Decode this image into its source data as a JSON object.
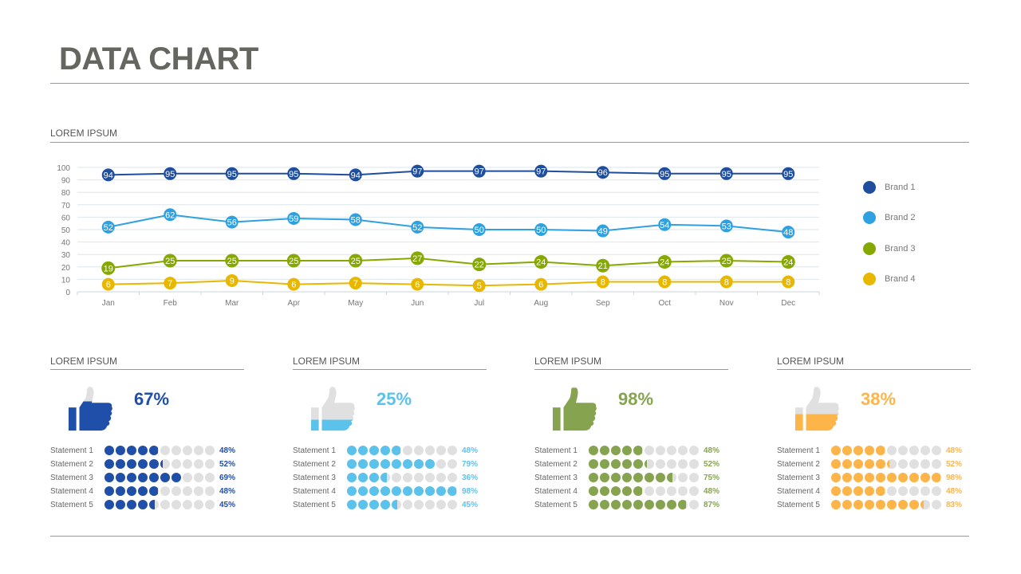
{
  "title": "DATA CHART",
  "chart_section_title": "LOREM IPSUM",
  "chart_data": {
    "type": "line",
    "categories": [
      "Jan",
      "Feb",
      "Mar",
      "Apr",
      "May",
      "Jun",
      "Jul",
      "Aug",
      "Sep",
      "Oct",
      "Nov",
      "Dec"
    ],
    "ylim": [
      0,
      100
    ],
    "yticks": [
      0,
      10,
      20,
      30,
      40,
      50,
      60,
      70,
      80,
      90,
      100
    ],
    "grid": true,
    "legend_placement": "right",
    "series": [
      {
        "name": "Brand 1",
        "color": "#1f4e9f",
        "values": [
          94,
          95,
          95,
          95,
          94,
          97,
          97,
          97,
          96,
          95,
          95,
          95
        ]
      },
      {
        "name": "Brand 2",
        "color": "#2fa0e0",
        "values": [
          52,
          62,
          56,
          59,
          58,
          52,
          50,
          50,
          49,
          54,
          53,
          48
        ]
      },
      {
        "name": "Brand 3",
        "color": "#86a800",
        "values": [
          19,
          25,
          25,
          25,
          25,
          27,
          22,
          24,
          21,
          24,
          25,
          24
        ]
      },
      {
        "name": "Brand 4",
        "color": "#e8b800",
        "values": [
          6,
          7,
          9,
          6,
          7,
          6,
          5,
          6,
          8,
          8,
          8,
          8
        ]
      }
    ]
  },
  "panels": [
    {
      "title": "LOREM IPSUM",
      "percent": 67,
      "percent_label": "67%",
      "color": "#1f4fa8",
      "statements": [
        {
          "label": "Statement 1",
          "value": 48,
          "value_label": "48%"
        },
        {
          "label": "Statement 2",
          "value": 52,
          "value_label": "52%"
        },
        {
          "label": "Statement 3",
          "value": 69,
          "value_label": "69%"
        },
        {
          "label": "Statement 4",
          "value": 48,
          "value_label": "48%"
        },
        {
          "label": "Statement 5",
          "value": 45,
          "value_label": "45%"
        }
      ]
    },
    {
      "title": "LOREM IPSUM",
      "percent": 25,
      "percent_label": "25%",
      "color": "#5bc2ec",
      "statements": [
        {
          "label": "Statement 1",
          "value": 48,
          "value_label": "48%"
        },
        {
          "label": "Statement 2",
          "value": 79,
          "value_label": "79%"
        },
        {
          "label": "Statement 3",
          "value": 36,
          "value_label": "36%"
        },
        {
          "label": "Statement 4",
          "value": 98,
          "value_label": "98%"
        },
        {
          "label": "Statement 5",
          "value": 45,
          "value_label": "45%"
        }
      ]
    },
    {
      "title": "LOREM IPSUM",
      "percent": 98,
      "percent_label": "98%",
      "color": "#86a44f",
      "statements": [
        {
          "label": "Statement 1",
          "value": 48,
          "value_label": "48%"
        },
        {
          "label": "Statement 2",
          "value": 52,
          "value_label": "52%"
        },
        {
          "label": "Statement 3",
          "value": 75,
          "value_label": "75%"
        },
        {
          "label": "Statement 4",
          "value": 48,
          "value_label": "48%"
        },
        {
          "label": "Statement 5",
          "value": 87,
          "value_label": "87%"
        }
      ]
    },
    {
      "title": "LOREM IPSUM",
      "percent": 38,
      "percent_label": "38%",
      "color": "#fdb448",
      "statements": [
        {
          "label": "Statement 1",
          "value": 48,
          "value_label": "48%"
        },
        {
          "label": "Statement 2",
          "value": 52,
          "value_label": "52%"
        },
        {
          "label": "Statement 3",
          "value": 98,
          "value_label": "98%"
        },
        {
          "label": "Statement 4",
          "value": 48,
          "value_label": "48%"
        },
        {
          "label": "Statement 5",
          "value": 83,
          "value_label": "83%"
        }
      ]
    }
  ],
  "icons": {
    "panel_icon": "thumbs-up-icon"
  },
  "empty_color": "#e0e0e0"
}
